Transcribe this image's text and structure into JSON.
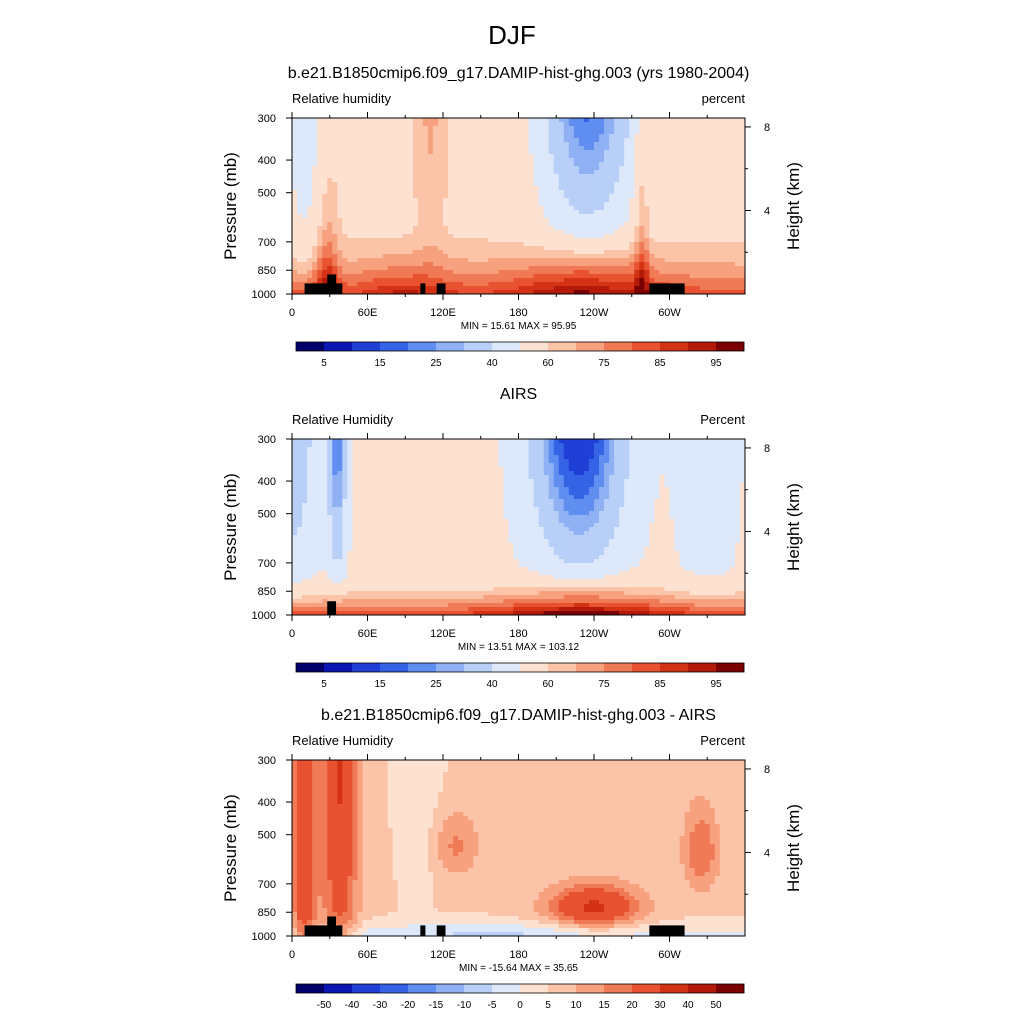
{
  "suptitle": "DJF",
  "chart_data": [
    {
      "type": "heatmap",
      "title": "b.e21.B1850cmip6.f09_g17.DAMIP-hist-ghg.003 (yrs 1980-2004)",
      "left_label": "Relative humidity",
      "right_label": "percent",
      "ylabel": "Pressure (mb)",
      "ylabel_right": "Height (km)",
      "x_ticks": [
        "0",
        "60E",
        "120E",
        "180",
        "120W",
        "60W"
      ],
      "x_tick_values": [
        0,
        60,
        120,
        180,
        240,
        300
      ],
      "xlim": [
        0,
        360
      ],
      "y_ticks": [
        "300",
        "400",
        "500",
        "700",
        "850",
        "1000"
      ],
      "y_tick_values": [
        300,
        400,
        500,
        700,
        850,
        1000
      ],
      "ylim": [
        1000,
        300
      ],
      "y_scale": "log",
      "height_ticks": [
        "8",
        "4"
      ],
      "height_tick_values": [
        8,
        4
      ],
      "min": 15.61,
      "max": 95.95,
      "stats": "MIN =  15.61  MAX =  95.95",
      "colorbar_labels": [
        "5",
        "15",
        "25",
        "40",
        "60",
        "75",
        "85",
        "95"
      ],
      "colorbar_levels": [
        5,
        10,
        15,
        20,
        25,
        30,
        40,
        50,
        60,
        65,
        70,
        75,
        80,
        85,
        90,
        95
      ],
      "terrain": [
        {
          "lon": [
            10,
            40
          ],
          "top_p": 930
        },
        {
          "lon": [
            28,
            35
          ],
          "top_p": 875
        },
        {
          "lon": [
            102,
            106
          ],
          "top_p": 930
        },
        {
          "lon": [
            115,
            122
          ],
          "top_p": 930
        },
        {
          "lon": [
            284,
            312
          ],
          "top_p": 930
        }
      ]
    },
    {
      "type": "heatmap",
      "title": "AIRS",
      "left_label": "Relative Humidity",
      "right_label": "Percent",
      "ylabel": "Pressure (mb)",
      "ylabel_right": "Height (km)",
      "x_ticks": [
        "0",
        "60E",
        "120E",
        "180",
        "120W",
        "60W"
      ],
      "x_tick_values": [
        0,
        60,
        120,
        180,
        240,
        300
      ],
      "xlim": [
        0,
        360
      ],
      "y_ticks": [
        "300",
        "400",
        "500",
        "700",
        "850",
        "1000"
      ],
      "y_tick_values": [
        300,
        400,
        500,
        700,
        850,
        1000
      ],
      "ylim": [
        1000,
        300
      ],
      "y_scale": "log",
      "height_ticks": [
        "8",
        "4"
      ],
      "height_tick_values": [
        8,
        4
      ],
      "min": 13.51,
      "max": 103.12,
      "stats": "MIN =  13.51  MAX = 103.12",
      "colorbar_labels": [
        "5",
        "15",
        "25",
        "40",
        "60",
        "75",
        "85",
        "95"
      ],
      "colorbar_levels": [
        5,
        10,
        15,
        20,
        25,
        30,
        40,
        50,
        60,
        65,
        70,
        75,
        80,
        85,
        90,
        95
      ],
      "terrain": [
        {
          "lon": [
            28,
            35
          ],
          "top_p": 910
        }
      ]
    },
    {
      "type": "heatmap",
      "title": "b.e21.B1850cmip6.f09_g17.DAMIP-hist-ghg.003 - AIRS",
      "left_label": "Relative Humidity",
      "right_label": "Percent",
      "ylabel": "Pressure (mb)",
      "ylabel_right": "Height (km)",
      "x_ticks": [
        "0",
        "60E",
        "120E",
        "180",
        "120W",
        "60W"
      ],
      "x_tick_values": [
        0,
        60,
        120,
        180,
        240,
        300
      ],
      "xlim": [
        0,
        360
      ],
      "y_ticks": [
        "300",
        "400",
        "500",
        "700",
        "850",
        "1000"
      ],
      "y_tick_values": [
        300,
        400,
        500,
        700,
        850,
        1000
      ],
      "ylim": [
        1000,
        300
      ],
      "y_scale": "log",
      "height_ticks": [
        "8",
        "4"
      ],
      "height_tick_values": [
        8,
        4
      ],
      "min": -15.64,
      "max": 35.65,
      "stats": "MIN = -15.64  MAX =  35.65",
      "colorbar_labels": [
        "-50",
        "-40",
        "-30",
        "-20",
        "-15",
        "-10",
        "-5",
        "0",
        "5",
        "10",
        "15",
        "20",
        "30",
        "40",
        "50"
      ],
      "colorbar_levels": [
        -50,
        -40,
        -30,
        -20,
        -15,
        -10,
        -5,
        0,
        5,
        10,
        15,
        20,
        30,
        40,
        50
      ],
      "terrain": [
        {
          "lon": [
            10,
            40
          ],
          "top_p": 930
        },
        {
          "lon": [
            28,
            35
          ],
          "top_p": 875
        },
        {
          "lon": [
            102,
            106
          ],
          "top_p": 930
        },
        {
          "lon": [
            115,
            122
          ],
          "top_p": 930
        },
        {
          "lon": [
            284,
            312
          ],
          "top_p": 930
        }
      ]
    }
  ],
  "colormap": [
    "#00006b",
    "#0a17b4",
    "#1f3fd6",
    "#3563e6",
    "#5f8ef0",
    "#8fb1f3",
    "#b8cff8",
    "#dde9fa",
    "#fde2d2",
    "#fbc3a7",
    "#f7a17e",
    "#f17a56",
    "#e85230",
    "#d43215",
    "#b31a0a",
    "#7d0000"
  ],
  "terrain_color": "#000000"
}
